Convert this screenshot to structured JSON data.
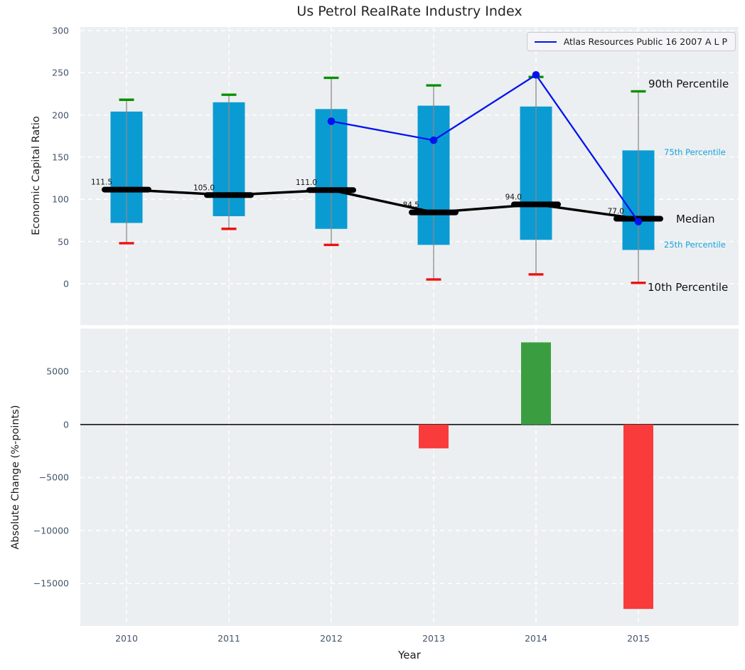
{
  "title": "Us Petrol RealRate Industry Index",
  "legend": {
    "label": "Atlas Resources Public 16 2007 A L P"
  },
  "annotations": {
    "p90": "90th Percentile",
    "p75": "75th Percentile",
    "median": "Median",
    "p25": "25th Percentile",
    "p10": "10th Percentile"
  },
  "colors": {
    "axes_background": "#eceff1",
    "grid": "#ffffff",
    "box_fill": "#0b9bd3",
    "whisker": "#8a8a8a",
    "cap_top_green": "#089000",
    "cap_bottom_red": "#ee1111",
    "median_black": "#000000",
    "atlas_line_blue": "#0013f0",
    "bar_positive_green": "#3a9e40",
    "bar_negative_red": "#f93b3b",
    "tick_text": "#43556a",
    "percentile_label_cyan": "#17a3dd"
  },
  "chart_data": [
    {
      "type": "box-percentile-with-line",
      "title": "Us Petrol RealRate Industry Index",
      "ylabel": "Economic Capital Ratio",
      "categories": [
        "2010",
        "2011",
        "2012",
        "2013",
        "2014",
        "2015"
      ],
      "series": [
        {
          "name": "90th Percentile",
          "values": [
            218,
            224,
            244,
            235,
            245,
            228
          ]
        },
        {
          "name": "75th Percentile",
          "values": [
            204,
            215,
            207,
            211,
            210,
            158
          ]
        },
        {
          "name": "Median",
          "values": [
            111.5,
            105.0,
            111.0,
            84.5,
            94.0,
            77.0
          ]
        },
        {
          "name": "25th Percentile",
          "values": [
            72,
            80,
            65,
            46,
            52,
            40
          ]
        },
        {
          "name": "10th Percentile",
          "values": [
            48,
            65,
            46,
            5,
            11,
            1
          ]
        }
      ],
      "median_labels": [
        "111.5",
        "105.0",
        "111.0",
        "84.5",
        "94.0",
        "77.0"
      ],
      "line_series": {
        "name": "Atlas Resources Public 16 2007 A L P",
        "categories": [
          "2012",
          "2013",
          "2014",
          "2015"
        ],
        "values": [
          192.5,
          170.0,
          247.5,
          73.5
        ]
      },
      "yticks": [
        0,
        50,
        100,
        150,
        200,
        250,
        300
      ],
      "ytick_labels": [
        "0",
        "50",
        "100",
        "150",
        "200",
        "250",
        "300"
      ],
      "ylim": [
        -49,
        304.2
      ],
      "grid": true,
      "legend_position": "upper right"
    },
    {
      "type": "bar",
      "xlabel": "Year",
      "ylabel": "Absolute Change (%-points)",
      "categories": [
        "2010",
        "2011",
        "2012",
        "2013",
        "2014",
        "2015"
      ],
      "values": [
        null,
        null,
        null,
        -2250,
        7750,
        -17400
      ],
      "yticks": [
        5000,
        0,
        -5000,
        -10000,
        -15000
      ],
      "ytick_labels": [
        "5000",
        "0",
        "−5000",
        "−10000",
        "−15000"
      ],
      "ylim": [
        -19000,
        9050
      ],
      "grid": true,
      "zero_line": 0
    }
  ]
}
